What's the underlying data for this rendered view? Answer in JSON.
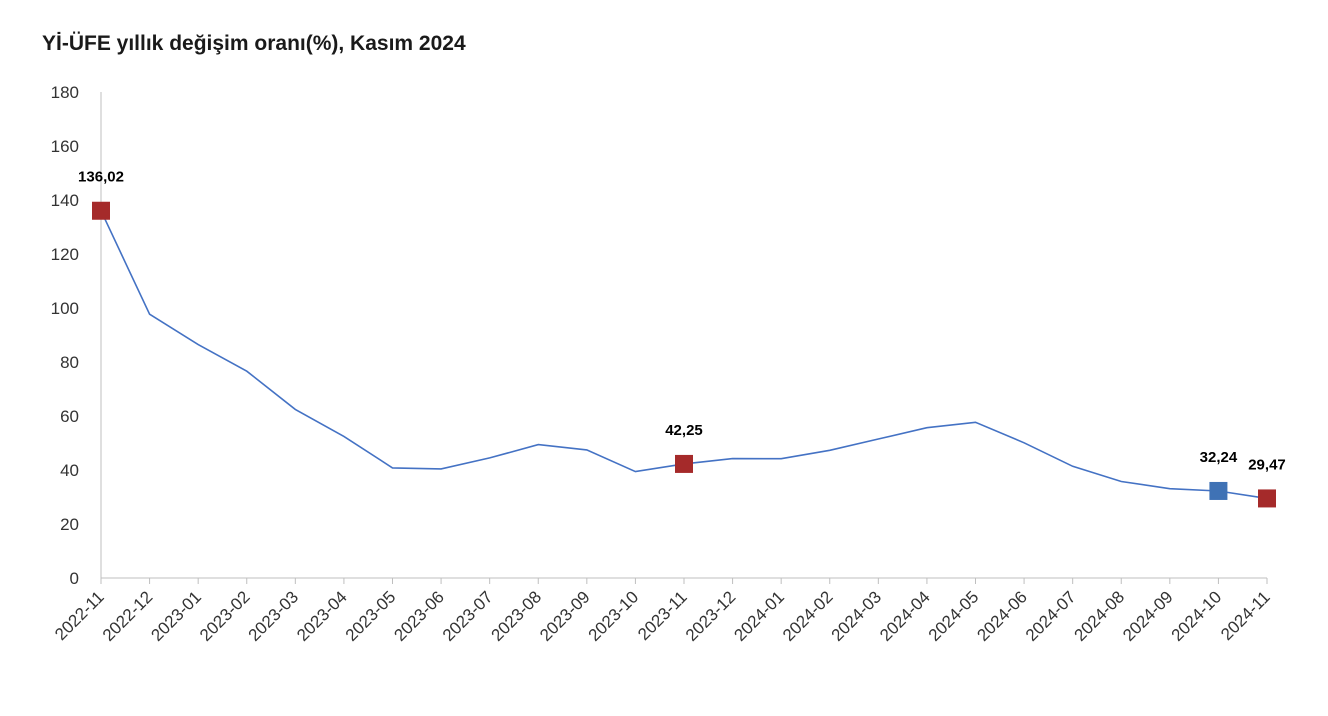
{
  "chart_data": {
    "type": "line",
    "title": "Yİ-ÜFE yıllık değişim oranı(%), Kasım 2024",
    "xlabel": "",
    "ylabel": "",
    "ylim": [
      0,
      180
    ],
    "yticks": [
      "0",
      "20",
      "40",
      "60",
      "80",
      "100",
      "120",
      "140",
      "160",
      "180"
    ],
    "grid": false,
    "legend": "none",
    "categories": [
      "2022-11",
      "2022-12",
      "2023-01",
      "2023-02",
      "2023-03",
      "2023-04",
      "2023-05",
      "2023-06",
      "2023-07",
      "2023-08",
      "2023-09",
      "2023-10",
      "2023-11",
      "2023-12",
      "2024-01",
      "2024-02",
      "2024-03",
      "2024-04",
      "2024-05",
      "2024-06",
      "2024-07",
      "2024-08",
      "2024-09",
      "2024-10",
      "2024-11"
    ],
    "series": [
      {
        "values": [
          136.02,
          97.72,
          86.46,
          76.61,
          62.44,
          52.44,
          40.76,
          40.42,
          44.5,
          49.41,
          47.44,
          39.39,
          42.25,
          44.22,
          44.2,
          47.29,
          51.47,
          55.66,
          57.68,
          50.09,
          41.37,
          35.75,
          33.09,
          32.24,
          29.47
        ],
        "color": "#4472C4"
      }
    ],
    "annotations": [
      {
        "index": 0,
        "label": "136,02",
        "marker_color": "#A52A2A"
      },
      {
        "index": 12,
        "label": "42,25",
        "marker_color": "#A52A2A"
      },
      {
        "index": 23,
        "label": "32,24",
        "marker_color": "#3F72B5"
      },
      {
        "index": 24,
        "label": "29,47",
        "marker_color": "#A52A2A"
      }
    ]
  }
}
